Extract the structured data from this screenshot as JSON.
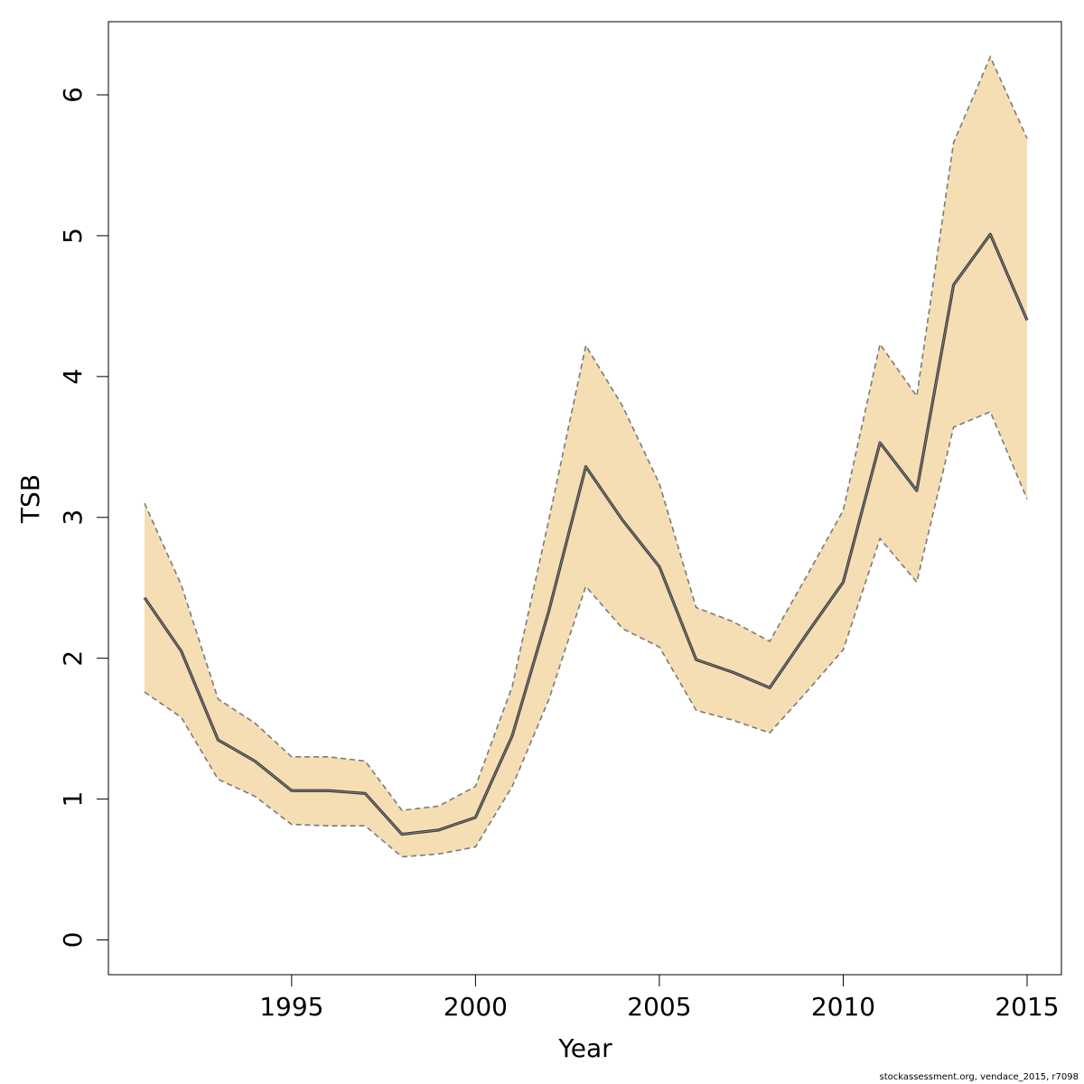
{
  "chart_data": {
    "type": "area",
    "title": "",
    "xlabel": "Year",
    "ylabel": "TSB",
    "xlim": [
      1991,
      2015
    ],
    "ylim": [
      0,
      6.5
    ],
    "x_ticks": [
      1995,
      2000,
      2005,
      2010,
      2015
    ],
    "y_ticks": [
      0,
      1,
      2,
      3,
      4,
      5,
      6
    ],
    "grid": false,
    "x": [
      1991,
      1992,
      1993,
      1994,
      1995,
      1996,
      1997,
      1998,
      1999,
      2000,
      2001,
      2002,
      2003,
      2004,
      2005,
      2006,
      2007,
      2008,
      2009,
      2010,
      2011,
      2012,
      2013,
      2014,
      2015
    ],
    "series": [
      {
        "values": [
          2.43,
          2.05,
          1.42,
          1.27,
          1.06,
          1.06,
          1.04,
          0.75,
          0.78,
          0.87,
          1.45,
          2.34,
          3.36,
          2.98,
          2.65,
          1.99,
          1.9,
          1.79,
          2.17,
          2.54,
          3.53,
          3.19,
          4.65,
          5.01,
          4.4
        ]
      },
      {
        "values": [
          1.76,
          1.58,
          1.14,
          1.02,
          0.82,
          0.81,
          0.81,
          0.59,
          0.61,
          0.66,
          1.09,
          1.71,
          2.51,
          2.21,
          2.08,
          1.63,
          1.56,
          1.47,
          1.76,
          2.06,
          2.85,
          2.54,
          3.64,
          3.75,
          3.13
        ]
      },
      {
        "values": [
          3.1,
          2.52,
          1.71,
          1.54,
          1.3,
          1.3,
          1.27,
          0.92,
          0.95,
          1.09,
          1.8,
          2.99,
          4.22,
          3.79,
          3.24,
          2.36,
          2.26,
          2.12,
          2.58,
          3.05,
          4.23,
          3.86,
          5.66,
          6.27,
          5.69
        ]
      }
    ],
    "colors": {
      "band_fill": "#f5deb3",
      "band_border": "#7a7a7a",
      "line": "#3c3c3c",
      "axis": "#000000"
    }
  },
  "footer_text": "stockassessment.org, vendace_2015, r7098"
}
